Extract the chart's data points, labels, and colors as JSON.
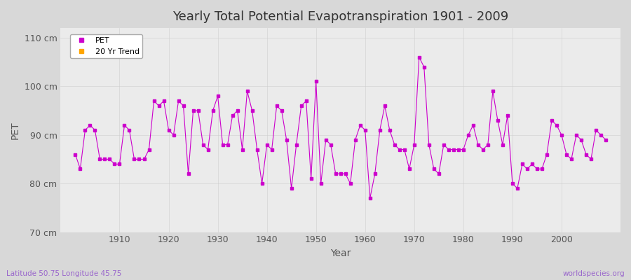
{
  "title": "Yearly Total Potential Evapotranspiration 1901 - 2009",
  "xlabel": "Year",
  "ylabel": "PET",
  "bottom_left": "Latitude 50.75 Longitude 45.75",
  "bottom_right": "worldspecies.org",
  "ylim": [
    70,
    112
  ],
  "yticks": [
    70,
    80,
    90,
    100,
    110
  ],
  "ytick_labels": [
    "70 cm",
    "80 cm",
    "90 cm",
    "100 cm",
    "110 cm"
  ],
  "line_color": "#cc00cc",
  "marker_color": "#cc00cc",
  "trend_color": "#ffa500",
  "bg_color": "#e8e8e8",
  "plot_bg": "#f0f0f0",
  "legend_pet": "PET",
  "legend_trend": "20 Yr Trend",
  "years": [
    1901,
    1902,
    1903,
    1904,
    1905,
    1906,
    1907,
    1908,
    1909,
    1910,
    1911,
    1912,
    1913,
    1914,
    1915,
    1916,
    1917,
    1918,
    1919,
    1920,
    1921,
    1922,
    1923,
    1924,
    1925,
    1926,
    1927,
    1928,
    1929,
    1930,
    1931,
    1932,
    1933,
    1934,
    1935,
    1936,
    1937,
    1938,
    1939,
    1940,
    1941,
    1942,
    1943,
    1944,
    1945,
    1946,
    1947,
    1948,
    1949,
    1950,
    1951,
    1952,
    1953,
    1954,
    1955,
    1956,
    1957,
    1958,
    1959,
    1960,
    1961,
    1962,
    1963,
    1964,
    1965,
    1966,
    1967,
    1968,
    1969,
    1970,
    1971,
    1972,
    1973,
    1974,
    1975,
    1976,
    1977,
    1978,
    1979,
    1980,
    1981,
    1982,
    1983,
    1984,
    1985,
    1986,
    1987,
    1988,
    1989,
    1990,
    1991,
    1992,
    1993,
    1994,
    1995,
    1996,
    1997,
    1998,
    1999,
    2000,
    2001,
    2002,
    2003,
    2004,
    2005,
    2006,
    2007,
    2008,
    2009
  ],
  "pet": [
    86,
    83,
    91,
    92,
    91,
    85,
    85,
    85,
    84,
    84,
    92,
    91,
    85,
    85,
    85,
    87,
    97,
    96,
    97,
    91,
    90,
    97,
    96,
    82,
    95,
    95,
    88,
    87,
    95,
    98,
    88,
    88,
    94,
    95,
    87,
    99,
    95,
    87,
    80,
    88,
    87,
    96,
    95,
    89,
    79,
    88,
    96,
    97,
    81,
    101,
    80,
    89,
    88,
    82,
    82,
    82,
    80,
    89,
    92,
    91,
    77,
    82,
    91,
    96,
    91,
    88,
    87,
    87,
    83,
    88,
    106,
    104,
    88,
    83,
    82,
    88,
    87,
    87,
    87,
    87,
    90,
    92,
    88,
    87,
    88,
    99,
    93,
    88,
    94,
    80,
    79,
    84,
    83,
    84,
    83,
    83,
    86,
    93,
    92,
    90,
    86,
    85,
    90,
    89,
    86,
    85,
    91,
    90,
    89
  ]
}
